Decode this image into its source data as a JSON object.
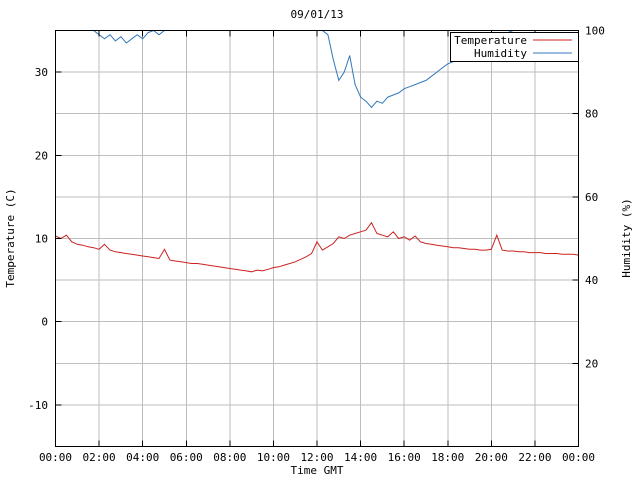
{
  "title": "09/01/13",
  "chart_data": {
    "type": "line",
    "title": "09/01/13",
    "xlabel": "Time GMT",
    "ylabel_left": "Temperature (C)",
    "ylabel_right": "Humidity (%)",
    "grid": true,
    "legend_position": "top-right-inside-boxed",
    "xlim": [
      0,
      24
    ],
    "ylim_left": [
      -15,
      35
    ],
    "ylim_right": [
      0,
      100
    ],
    "x_tick_values": [
      0,
      2,
      4,
      6,
      8,
      10,
      12,
      14,
      16,
      18,
      20,
      22,
      24
    ],
    "x_tick_labels": [
      "00:00",
      "02:00",
      "04:00",
      "06:00",
      "08:00",
      "10:00",
      "12:00",
      "14:00",
      "16:00",
      "18:00",
      "20:00",
      "22:00",
      "00:00"
    ],
    "y_left_tick_values": [
      -10,
      0,
      10,
      20,
      30
    ],
    "y_left_tick_labels": [
      "-10",
      "0",
      "10",
      "20",
      "30"
    ],
    "y_right_tick_values": [
      20,
      40,
      60,
      80,
      100
    ],
    "y_right_tick_labels": [
      "20",
      "40",
      "60",
      "80",
      "100"
    ],
    "x_start": 0,
    "x_step": 0.25,
    "series": [
      {
        "name": "Temperature",
        "axis": "left",
        "color": "#cc2222",
        "values": [
          10.3,
          10.0,
          10.4,
          9.6,
          9.3,
          9.2,
          9.0,
          8.9,
          8.7,
          9.3,
          8.6,
          8.4,
          8.3,
          8.2,
          8.1,
          8.0,
          7.9,
          7.8,
          7.7,
          7.6,
          8.7,
          7.4,
          7.3,
          7.2,
          7.1,
          7.0,
          7.0,
          6.9,
          6.8,
          6.7,
          6.6,
          6.5,
          6.4,
          6.3,
          6.2,
          6.1,
          6.0,
          6.2,
          6.1,
          6.3,
          6.5,
          6.6,
          6.8,
          7.0,
          7.2,
          7.5,
          7.8,
          8.2,
          9.6,
          8.6,
          9.0,
          9.4,
          10.2,
          10.0,
          10.4,
          10.6,
          10.8,
          11.0,
          11.9,
          10.6,
          10.4,
          10.2,
          10.8,
          10.0,
          10.2,
          9.8,
          10.3,
          9.6,
          9.4,
          9.3,
          9.2,
          9.1,
          9.0,
          8.9,
          8.9,
          8.8,
          8.7,
          8.7,
          8.6,
          8.6,
          8.7,
          10.4,
          8.6,
          8.5,
          8.5,
          8.4,
          8.4,
          8.3,
          8.3,
          8.3,
          8.2,
          8.2,
          8.2,
          8.1,
          8.1,
          8.1,
          8.0
        ]
      },
      {
        "name": "Humidity",
        "axis": "right",
        "color": "#3377bb",
        "values": [
          100,
          100,
          100,
          100,
          100,
          100,
          100,
          100,
          99,
          98,
          99,
          97.5,
          98.5,
          97,
          98,
          99,
          98,
          99.5,
          100,
          99,
          100,
          100,
          100,
          100,
          100,
          100,
          100,
          100,
          100,
          100,
          100,
          100,
          100,
          100,
          100,
          100,
          100,
          100,
          100,
          100,
          100,
          100,
          100,
          100,
          100,
          100,
          100,
          100,
          100,
          100,
          99,
          93,
          88,
          90,
          94,
          87,
          84,
          83,
          81.5,
          83,
          82.5,
          84,
          84.5,
          85,
          86,
          86.5,
          87,
          87.5,
          88,
          89,
          90,
          91,
          92,
          92.5,
          93,
          94,
          95,
          96,
          97,
          97.5,
          98,
          98.5,
          99,
          99.5,
          100,
          100,
          100,
          100,
          100,
          100,
          100,
          100,
          100,
          100,
          100,
          100,
          100
        ]
      }
    ]
  },
  "colors": {
    "temperature": "#cc2222",
    "humidity": "#3377bb",
    "grid": "#bdbdbd",
    "axis": "#000000",
    "background": "#ffffff"
  }
}
